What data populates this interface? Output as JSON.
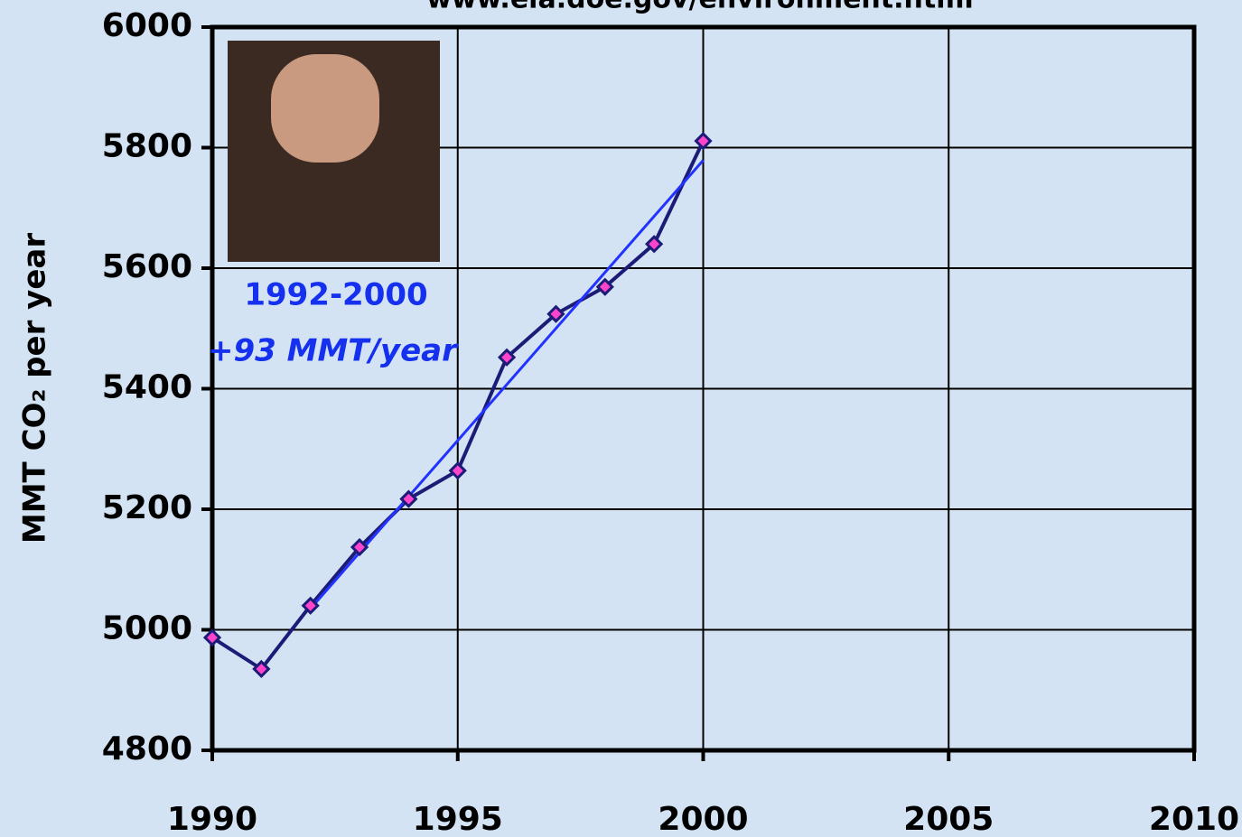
{
  "chart_data": {
    "type": "line",
    "title": "www.eia.doe.gov/environment.html",
    "y_label": "MMT CO₂ per year",
    "annotations": [
      "1992-2000",
      "+93 MMT/year"
    ],
    "x": [
      1990,
      1991,
      1992,
      1993,
      1994,
      1995,
      1996,
      1997,
      1998,
      1999,
      2000
    ],
    "series": [
      {
        "color": "#1c1c78",
        "marker_color": "#ff44cc",
        "x": [
          1990,
          1991,
          1992,
          1993,
          1994,
          1995,
          1996,
          1997,
          1998,
          1999,
          2000
        ],
        "values": [
          4987,
          4935,
          5040,
          5137,
          5217,
          5264,
          5452,
          5524,
          5569,
          5640,
          5811
        ]
      },
      {
        "color": "#2233ff",
        "x": [
          1992,
          2000
        ],
        "values": [
          5035,
          5779
        ]
      }
    ],
    "xlim": [
      1990,
      2010
    ],
    "xticks": [
      1990,
      1995,
      2000,
      2005,
      2010
    ],
    "ylim": [
      4800,
      6000
    ],
    "yticks": [
      4800,
      5000,
      5200,
      5400,
      5600,
      5800,
      6000
    ],
    "grid": true
  }
}
